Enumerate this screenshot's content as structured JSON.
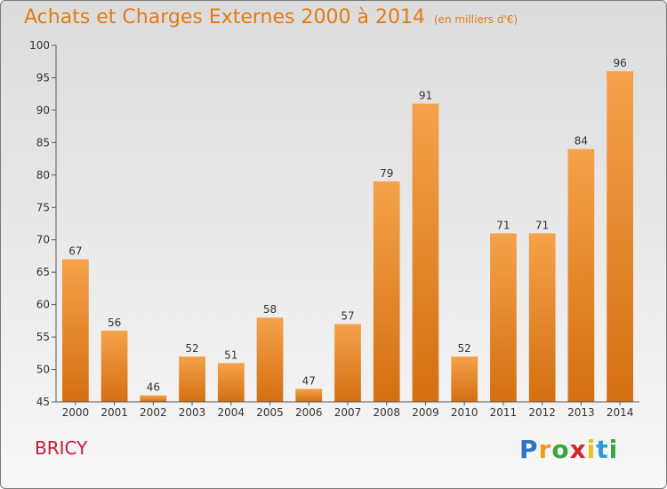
{
  "header": {
    "title": "Achats et Charges Externes 2000 à 2014",
    "unit": "(en milliers d'€)"
  },
  "commune": "BRICY",
  "logo": {
    "letters": [
      "P",
      "r",
      "o",
      "x",
      "i",
      "t",
      "i"
    ],
    "colors": [
      "#2a74c4",
      "#e8a01a",
      "#3aa53a",
      "#d6262b",
      "#e8c21a",
      "#2a9dd6",
      "#3aa53a"
    ]
  },
  "chart_data": {
    "type": "bar",
    "categories": [
      "2000",
      "2001",
      "2002",
      "2003",
      "2004",
      "2005",
      "2006",
      "2007",
      "2008",
      "2009",
      "2010",
      "2011",
      "2012",
      "2013",
      "2014"
    ],
    "values": [
      67,
      56,
      46,
      52,
      51,
      58,
      47,
      57,
      79,
      91,
      52,
      71,
      71,
      84,
      96
    ],
    "yticks": [
      45,
      50,
      55,
      60,
      65,
      70,
      75,
      80,
      85,
      90,
      95,
      100
    ],
    "ylim": [
      45,
      100
    ],
    "grid": false,
    "bar_color": "#f0922e",
    "bar_color_dark": "#d46f12"
  }
}
